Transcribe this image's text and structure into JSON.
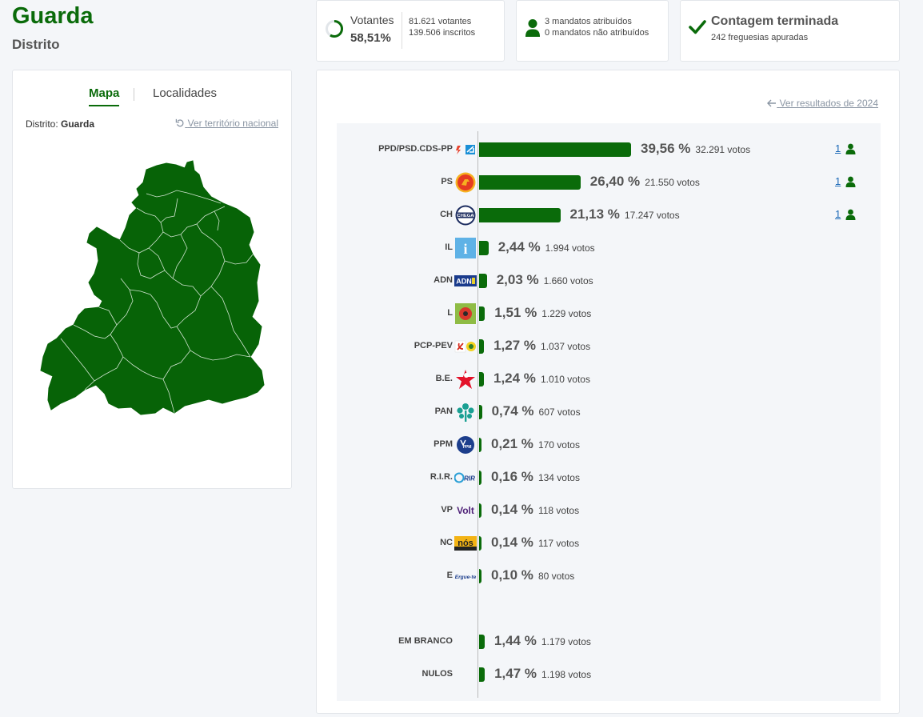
{
  "header": {
    "title": "Guarda",
    "subtitle": "Distrito"
  },
  "stats": {
    "votantes_label": "Votantes",
    "votantes_pct": "58,51%",
    "votantes_fraction": 0.5851,
    "votantes_count": "81.621 votantes",
    "inscritos": "139.506 inscritos",
    "mandatos_atribuidos": "3 mandatos atribuídos",
    "mandatos_nao_atribuidos": "0 mandatos não atribuídos",
    "contagem_title": "Contagem terminada",
    "freguesias": "242 freguesias apuradas"
  },
  "map_card": {
    "tab_map": "Mapa",
    "tab_localidades": "Localidades",
    "district_prefix": "Distrito:",
    "district_value": "Guarda",
    "national_link": "Ver território nacional"
  },
  "results": {
    "prev_link": "Ver resultados de 2024",
    "parties": [
      {
        "name": "PPD/PSD.CDS-PP",
        "pct": "39,56 %",
        "pct_value": 39.56,
        "votes": "32.291 votos",
        "seats": "1",
        "logo": "psd-cds-logo"
      },
      {
        "name": "PS",
        "pct": "26,40 %",
        "pct_value": 26.4,
        "votes": "21.550 votos",
        "seats": "1",
        "logo": "ps-logo"
      },
      {
        "name": "CH",
        "pct": "21,13 %",
        "pct_value": 21.13,
        "votes": "17.247 votos",
        "seats": "1",
        "logo": "chega-logo"
      },
      {
        "name": "IL",
        "pct": "2,44 %",
        "pct_value": 2.44,
        "votes": "1.994 votos",
        "seats": "",
        "logo": "il-logo"
      },
      {
        "name": "ADN",
        "pct": "2,03 %",
        "pct_value": 2.03,
        "votes": "1.660 votos",
        "seats": "",
        "logo": "adn-logo"
      },
      {
        "name": "L",
        "pct": "1,51 %",
        "pct_value": 1.51,
        "votes": "1.229 votos",
        "seats": "",
        "logo": "livre-logo"
      },
      {
        "name": "PCP-PEV",
        "pct": "1,27 %",
        "pct_value": 1.27,
        "votes": "1.037 votos",
        "seats": "",
        "logo": "pcp-pev-logo"
      },
      {
        "name": "B.E.",
        "pct": "1,24 %",
        "pct_value": 1.24,
        "votes": "1.010 votos",
        "seats": "",
        "logo": "be-logo"
      },
      {
        "name": "PAN",
        "pct": "0,74 %",
        "pct_value": 0.74,
        "votes": "607 votos",
        "seats": "",
        "logo": "pan-logo"
      },
      {
        "name": "PPM",
        "pct": "0,21 %",
        "pct_value": 0.21,
        "votes": "170 votos",
        "seats": "",
        "logo": "ppm-logo"
      },
      {
        "name": "R.I.R.",
        "pct": "0,16 %",
        "pct_value": 0.16,
        "votes": "134 votos",
        "seats": "",
        "logo": "rir-logo"
      },
      {
        "name": "VP",
        "pct": "0,14 %",
        "pct_value": 0.14,
        "votes": "118 votos",
        "seats": "",
        "logo": "volt-logo"
      },
      {
        "name": "NC",
        "pct": "0,14 %",
        "pct_value": 0.14,
        "votes": "117 votos",
        "seats": "",
        "logo": "nos-cidadaos-logo"
      },
      {
        "name": "E",
        "pct": "0,10 %",
        "pct_value": 0.1,
        "votes": "80 votos",
        "seats": "",
        "logo": "ergue-te-logo"
      }
    ],
    "others": [
      {
        "name": "EM BRANCO",
        "pct": "1,44 %",
        "pct_value": 1.44,
        "votes": "1.179 votos"
      },
      {
        "name": "NULOS",
        "pct": "1,47 %",
        "pct_value": 1.47,
        "votes": "1.198 votos"
      }
    ]
  },
  "logo_text": {
    "chega": "CHEGA",
    "il": "i",
    "adn": "ADN",
    "ppm": "PPM",
    "rir": "RIR",
    "volt": "Volt",
    "nc": "nós",
    "ergue": "Ergue-te"
  },
  "colors": {
    "accent": "#0a6b0a",
    "link": "#8a95a3",
    "seat_link": "#1e6bb8"
  }
}
